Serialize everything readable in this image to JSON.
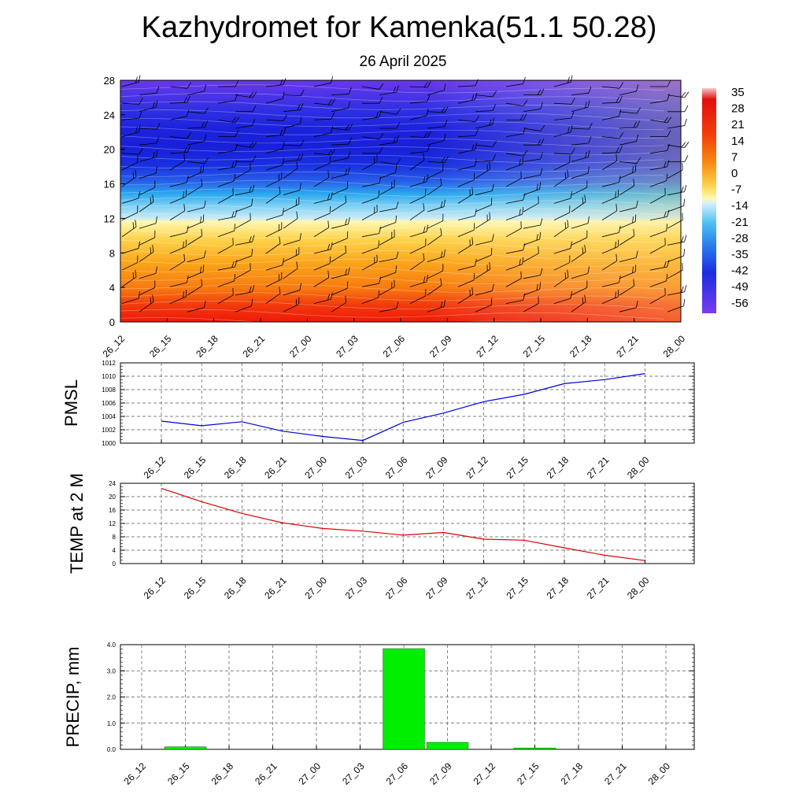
{
  "title": "Kazhydromet for Kamenka(51.1 50.28)",
  "subtitle": "26 April 2025",
  "colors": {
    "pmsl_line": "#0000dd",
    "temp_line": "#dd0000",
    "precip_bar": "#00ee00"
  },
  "chart_data": [
    {
      "type": "heatmap",
      "name": "cross-section",
      "x_ticks": [
        "26_12",
        "26_15",
        "26_18",
        "26_21",
        "27_00",
        "27_03",
        "27_06",
        "27_09",
        "27_12",
        "27_15",
        "27_18",
        "27_21",
        "28_00"
      ],
      "y_ticks": [
        "0",
        "4",
        "8",
        "12",
        "16",
        "20",
        "24",
        "28"
      ],
      "ylim": [
        0,
        28
      ],
      "colorbar_labels": [
        "35",
        "28",
        "21",
        "14",
        "7",
        "0",
        "-7",
        "-14",
        "-21",
        "-28",
        "-35",
        "-42",
        "-49",
        "-56"
      ],
      "wind_barbs": true
    },
    {
      "type": "line",
      "ylabel": "PMSL",
      "categories": [
        "26_12",
        "26_15",
        "26_18",
        "26_21",
        "27_00",
        "27_03",
        "27_06",
        "27_09",
        "27_12",
        "27_15",
        "27_18",
        "27_21",
        "28_00"
      ],
      "values": [
        1003.3,
        1002.6,
        1003.2,
        1001.8,
        1001.0,
        1000.4,
        1003.1,
        1004.5,
        1006.2,
        1007.3,
        1008.9,
        1009.5,
        1010.4
      ],
      "ylim": [
        1000,
        1012
      ],
      "y_ticks": [
        "1000",
        "1002",
        "1004",
        "1006",
        "1008",
        "1010",
        "1012"
      ],
      "grid": true
    },
    {
      "type": "line",
      "ylabel": "TEMP at 2 M",
      "categories": [
        "26_12",
        "26_15",
        "26_18",
        "26_21",
        "27_00",
        "27_03",
        "27_06",
        "27_09",
        "27_12",
        "27_15",
        "27_18",
        "27_21",
        "28_00"
      ],
      "values": [
        22.5,
        18.5,
        15.0,
        12.2,
        10.5,
        9.7,
        8.5,
        9.3,
        7.3,
        7.0,
        4.7,
        2.5,
        0.9
      ],
      "ylim": [
        0,
        24
      ],
      "y_ticks": [
        "0",
        "4",
        "8",
        "12",
        "16",
        "20",
        "24"
      ],
      "grid": true
    },
    {
      "type": "bar",
      "ylabel": "PRECIP, mm",
      "categories": [
        "26_12",
        "26_15",
        "26_18",
        "26_21",
        "27_00",
        "27_03",
        "27_06",
        "27_09",
        "27_12",
        "27_15",
        "27_18",
        "27_21",
        "28_00"
      ],
      "values": [
        0,
        0.1,
        0,
        0,
        0,
        0,
        3.85,
        0.27,
        0,
        0.05,
        0,
        0,
        0
      ],
      "ylim": [
        0,
        4
      ],
      "y_ticks": [
        "0.0",
        "1.0",
        "2.0",
        "3.0",
        "4.0"
      ],
      "grid": true
    }
  ]
}
